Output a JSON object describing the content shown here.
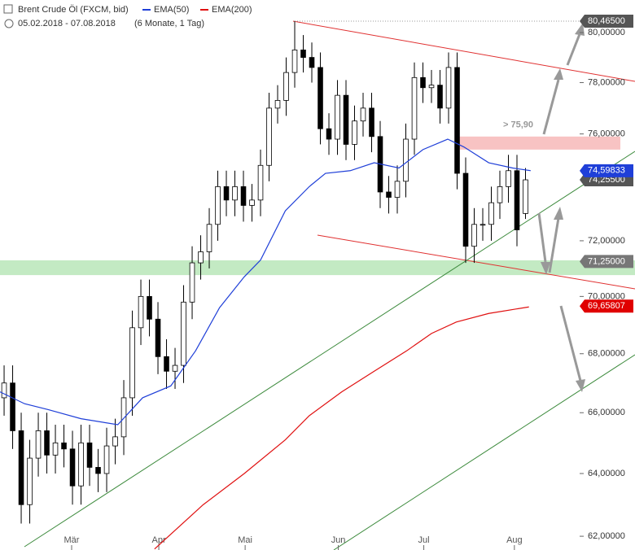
{
  "chart_data": {
    "type": "candlestick",
    "title": "Brent Crude Öl (FXCM, bid)",
    "subtitle": "05.02.2018 - 07.08.2018",
    "period": "(6 Monate, 1 Tag)",
    "log_scale": true,
    "xlim": [
      -0.48,
      73.81
    ],
    "ylim": [
      61.57,
      81.33
    ],
    "xticks": [
      {
        "value": 7.9,
        "label": "Mär"
      },
      {
        "value": 18.1,
        "label": "Apr"
      },
      {
        "value": 28.2,
        "label": "Mai"
      },
      {
        "value": 39.1,
        "label": "Jun"
      },
      {
        "value": 49.1,
        "label": "Jul"
      },
      {
        "value": 59.7,
        "label": "Aug"
      }
    ],
    "yticks": [
      {
        "value": 62,
        "label": "62,00000"
      },
      {
        "value": 64,
        "label": "64,00000"
      },
      {
        "value": 66,
        "label": "66,00000"
      },
      {
        "value": 68,
        "label": "68,00000"
      },
      {
        "value": 70,
        "label": "70,00000"
      },
      {
        "value": 72,
        "label": "72,00000"
      },
      {
        "value": 76,
        "label": "76,00000"
      },
      {
        "value": 78,
        "label": "78,00000"
      },
      {
        "value": 80,
        "label": "80,00000"
      }
    ],
    "up_color": "#ffffff",
    "down_color": "#000000",
    "open": [
      66.5,
      67.0,
      65.4,
      63.0,
      64.5,
      65.4,
      64.6,
      65.0,
      64.8,
      63.6,
      65.0,
      64.2,
      64.0,
      64.9,
      65.2,
      66.5,
      68.9,
      70.0,
      69.2,
      67.9,
      67.4,
      67.6,
      69.8,
      71.2,
      71.6,
      72.6,
      74.0,
      73.5,
      74.0,
      73.3,
      73.5,
      74.8,
      77.0,
      77.3,
      78.4,
      79.3,
      79.0,
      78.6,
      76.2,
      75.8,
      77.5,
      75.6,
      76.5,
      77.0,
      75.9,
      73.8,
      73.6,
      74.2,
      75.8,
      78.2,
      77.8,
      77.9,
      77.0,
      78.6,
      74.5,
      71.8,
      72.6,
      72.6,
      73.4,
      74.0,
      74.6,
      73.0
    ],
    "high": [
      67.6,
      67.6,
      66.0,
      65.1,
      66.0,
      66.0,
      65.6,
      65.6,
      65.4,
      65.6,
      65.6,
      64.8,
      65.5,
      65.8,
      67.1,
      69.5,
      70.6,
      70.6,
      69.8,
      68.5,
      68.2,
      70.4,
      71.8,
      72.2,
      73.2,
      74.6,
      74.6,
      74.6,
      74.6,
      74.1,
      75.4,
      77.6,
      77.9,
      79.0,
      80.465,
      79.9,
      79.6,
      79.2,
      76.8,
      78.1,
      78.1,
      77.1,
      77.6,
      77.6,
      76.5,
      74.4,
      74.8,
      76.4,
      78.8,
      78.8,
      78.5,
      78.5,
      79.2,
      79.2,
      75.1,
      73.2,
      73.2,
      74.0,
      74.6,
      75.2,
      75.2,
      74.7
    ],
    "low": [
      65.9,
      64.8,
      62.4,
      62.4,
      63.9,
      64.0,
      64.0,
      64.2,
      63.0,
      63.0,
      63.6,
      63.4,
      63.4,
      64.3,
      64.6,
      65.9,
      68.3,
      68.6,
      67.3,
      66.8,
      66.8,
      67.0,
      69.2,
      70.6,
      71.0,
      72.0,
      72.9,
      72.9,
      72.7,
      72.7,
      72.9,
      74.2,
      76.4,
      76.7,
      77.8,
      78.4,
      78.0,
      75.6,
      75.2,
      75.2,
      75.0,
      75.0,
      75.9,
      75.3,
      73.2,
      73.0,
      73.0,
      73.6,
      75.2,
      77.2,
      77.2,
      76.4,
      76.4,
      73.9,
      71.2,
      71.2,
      72.0,
      72.0,
      72.8,
      73.4,
      71.8,
      72.8
    ],
    "close": [
      67.0,
      65.4,
      63.0,
      64.5,
      65.4,
      64.6,
      65.0,
      64.8,
      63.6,
      65.0,
      64.2,
      64.0,
      64.9,
      65.2,
      66.5,
      68.9,
      70.0,
      69.2,
      67.9,
      67.4,
      67.6,
      69.8,
      71.2,
      71.6,
      72.6,
      74.0,
      73.5,
      74.0,
      73.3,
      73.5,
      74.8,
      77.0,
      77.3,
      78.4,
      79.3,
      79.0,
      78.6,
      76.2,
      75.8,
      77.5,
      75.6,
      76.5,
      77.0,
      75.9,
      73.8,
      73.6,
      74.2,
      75.8,
      78.2,
      77.8,
      77.9,
      77.0,
      78.6,
      74.5,
      71.8,
      72.6,
      72.6,
      73.4,
      74.0,
      74.6,
      72.4,
      74.255
    ],
    "series": [
      {
        "name": "EMA(50)",
        "color": "#1f3fd8",
        "x": [
          -0.48,
          2.4,
          5.2,
          9.0,
          13.3,
          16.2,
          19.5,
          22.4,
          25.2,
          28.1,
          30,
          32.9,
          35.7,
          37.6,
          40.5,
          43.3,
          46.2,
          49,
          51.9,
          53.8,
          56.7,
          59.5,
          61.6
        ],
        "values": [
          66.7,
          66.3,
          66.1,
          65.8,
          65.6,
          66.5,
          66.9,
          68.1,
          69.6,
          70.7,
          71.3,
          73.1,
          74.0,
          74.5,
          74.6,
          74.9,
          74.7,
          75.4,
          75.8,
          75.5,
          74.9,
          74.7,
          74.6
        ]
      },
      {
        "name": "EMA(200)",
        "color": "#e01010",
        "x": [
          17.6,
          23.3,
          28.1,
          32.9,
          35.7,
          39.5,
          43.3,
          47.1,
          50,
          52.9,
          56.7,
          61.4
        ],
        "values": [
          61.6,
          63.0,
          64.0,
          65.1,
          65.9,
          66.7,
          67.4,
          68.1,
          68.7,
          69.1,
          69.4,
          69.63
        ]
      }
    ],
    "zones": [
      {
        "from": 70.76,
        "to": 71.29,
        "color": "#b8e6b8"
      },
      {
        "from": 75.4,
        "to": 75.9,
        "color": "#f7b8b8"
      }
    ],
    "annotation": "> 75,90",
    "price_labels": [
      {
        "value": 80.465,
        "label": "80,46500",
        "color": "#555555"
      },
      {
        "value": 74.255,
        "label": "74,25500",
        "color": "#555555"
      },
      {
        "value": 74.59833,
        "label": "74,59833",
        "color": "#1f3fd8"
      },
      {
        "value": 71.25,
        "label": "71,25000",
        "color": "#777777"
      },
      {
        "value": 69.65807,
        "label": "69,65807",
        "color": "#e00000"
      }
    ]
  }
}
